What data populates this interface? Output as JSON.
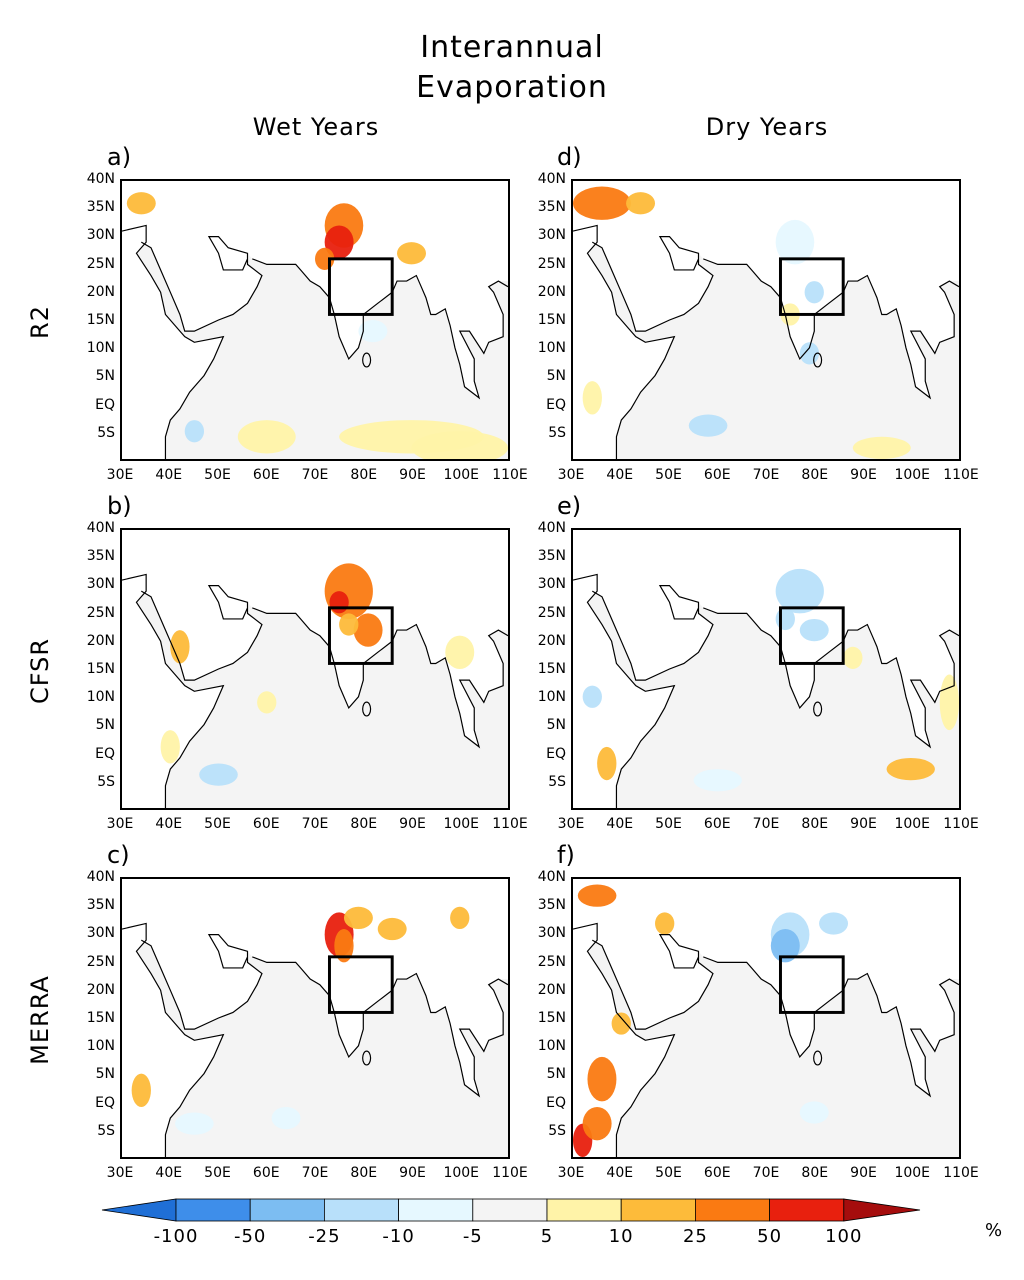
{
  "figure": {
    "title_line1": "Interannual",
    "title_line2": "Evaporation",
    "columns": [
      "Wet Years",
      "Dry Years"
    ],
    "rows": [
      "R2",
      "CFSR",
      "MERRA"
    ],
    "panel_labels": [
      "a)",
      "d)",
      "b)",
      "e)",
      "c)",
      "f)"
    ],
    "lat_ticks": [
      "40N",
      "35N",
      "30N",
      "25N",
      "20N",
      "15N",
      "10N",
      "5N",
      "EQ",
      "5S"
    ],
    "lon_ticks": [
      "30E",
      "40E",
      "50E",
      "60E",
      "70E",
      "80E",
      "90E",
      "100E",
      "110E"
    ],
    "colorbar": {
      "labels": [
        "-100",
        "-50",
        "-25",
        "-10",
        "-5",
        "5",
        "10",
        "25",
        "50",
        "100"
      ],
      "colors": [
        "#1f6fd6",
        "#3e8eea",
        "#7cbdf2",
        "#b8e0fa",
        "#e6f8ff",
        "#f4f4f4",
        "#fff3a8",
        "#fdbb3a",
        "#fa7a12",
        "#e8200e",
        "#a50d0d"
      ],
      "units": "%"
    },
    "box_region": {
      "lon": [
        73,
        86
      ],
      "lat": [
        16,
        26
      ]
    }
  }
}
